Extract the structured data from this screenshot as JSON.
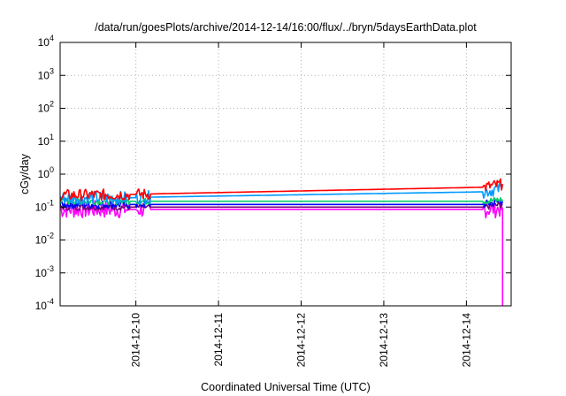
{
  "chart_data": {
    "type": "line",
    "title": "/data/run/goesPlots/archive/2014-12-14/16:00/flux/../bryn/5daysEarthData.plot",
    "xlabel": "Coordinated Universal Time (UTC)",
    "ylabel": "cGy/day",
    "y_scale": "log",
    "ylim": [
      0.0001,
      10000
    ],
    "y_ticks": [
      {
        "base": "10",
        "exp": "4",
        "value": 10000
      },
      {
        "base": "10",
        "exp": "3",
        "value": 1000
      },
      {
        "base": "10",
        "exp": "2",
        "value": 100
      },
      {
        "base": "10",
        "exp": "1",
        "value": 10
      },
      {
        "base": "10",
        "exp": "0",
        "value": 1
      },
      {
        "base": "10",
        "exp": "-1",
        "value": 0.1
      },
      {
        "base": "10",
        "exp": "-2",
        "value": 0.01
      },
      {
        "base": "10",
        "exp": "-3",
        "value": 0.001
      },
      {
        "base": "10",
        "exp": "-4",
        "value": 0.0001
      }
    ],
    "x_range": [
      "2014-12-09T02:00",
      "2014-12-14T13:00"
    ],
    "x_tick_labels": [
      "2014-12-10",
      "2014-12-11",
      "2014-12-12",
      "2014-12-13",
      "2014-12-14"
    ],
    "x_ticks": [
      "2014-12-10T00:00",
      "2014-12-11T00:00",
      "2014-12-12T00:00",
      "2014-12-13T00:00",
      "2014-12-14T00:00"
    ],
    "grid": true,
    "legend": "none",
    "series": [
      {
        "color": "#ff00ff",
        "noise": 0.55,
        "x": [
          "2014-12-09T02:00",
          "2014-12-09T22:00",
          "2014-12-10T04:00",
          "2014-12-14T05:00",
          "2014-12-14T10:00",
          "2014-12-14T10:30",
          "2014-12-14T10:31"
        ],
        "y": [
          0.085,
          0.085,
          0.085,
          0.085,
          0.09,
          0.09,
          0.0001
        ]
      },
      {
        "color": "#7a0077",
        "noise": 0.2,
        "x": [
          "2014-12-09T02:00",
          "2014-12-09T22:00",
          "2014-12-10T04:00",
          "2014-12-14T05:00",
          "2014-12-14T10:30"
        ],
        "y": [
          0.1,
          0.1,
          0.1,
          0.1,
          0.12
        ]
      },
      {
        "color": "#0000ff",
        "noise": 0.25,
        "x": [
          "2014-12-09T02:00",
          "2014-12-09T22:00",
          "2014-12-10T04:00",
          "2014-12-14T05:00",
          "2014-12-14T10:30"
        ],
        "y": [
          0.12,
          0.12,
          0.12,
          0.12,
          0.15
        ]
      },
      {
        "color": "#00cc66",
        "noise": 0.2,
        "x": [
          "2014-12-09T02:00",
          "2014-12-09T22:00",
          "2014-12-10T04:00",
          "2014-12-14T05:00",
          "2014-12-14T10:30"
        ],
        "y": [
          0.15,
          0.15,
          0.15,
          0.15,
          0.17
        ]
      },
      {
        "color": "#0099ff",
        "noise": 0.4,
        "x": [
          "2014-12-09T02:00",
          "2014-12-09T22:00",
          "2014-12-10T04:00",
          "2014-12-14T05:00",
          "2014-12-14T10:30"
        ],
        "y": [
          0.19,
          0.19,
          0.2,
          0.29,
          0.38
        ]
      },
      {
        "color": "#ff0000",
        "noise": 0.35,
        "x": [
          "2014-12-09T02:00",
          "2014-12-09T22:00",
          "2014-12-10T04:00",
          "2014-12-14T05:00",
          "2014-12-14T10:30"
        ],
        "y": [
          0.23,
          0.24,
          0.25,
          0.4,
          0.5
        ]
      }
    ]
  }
}
